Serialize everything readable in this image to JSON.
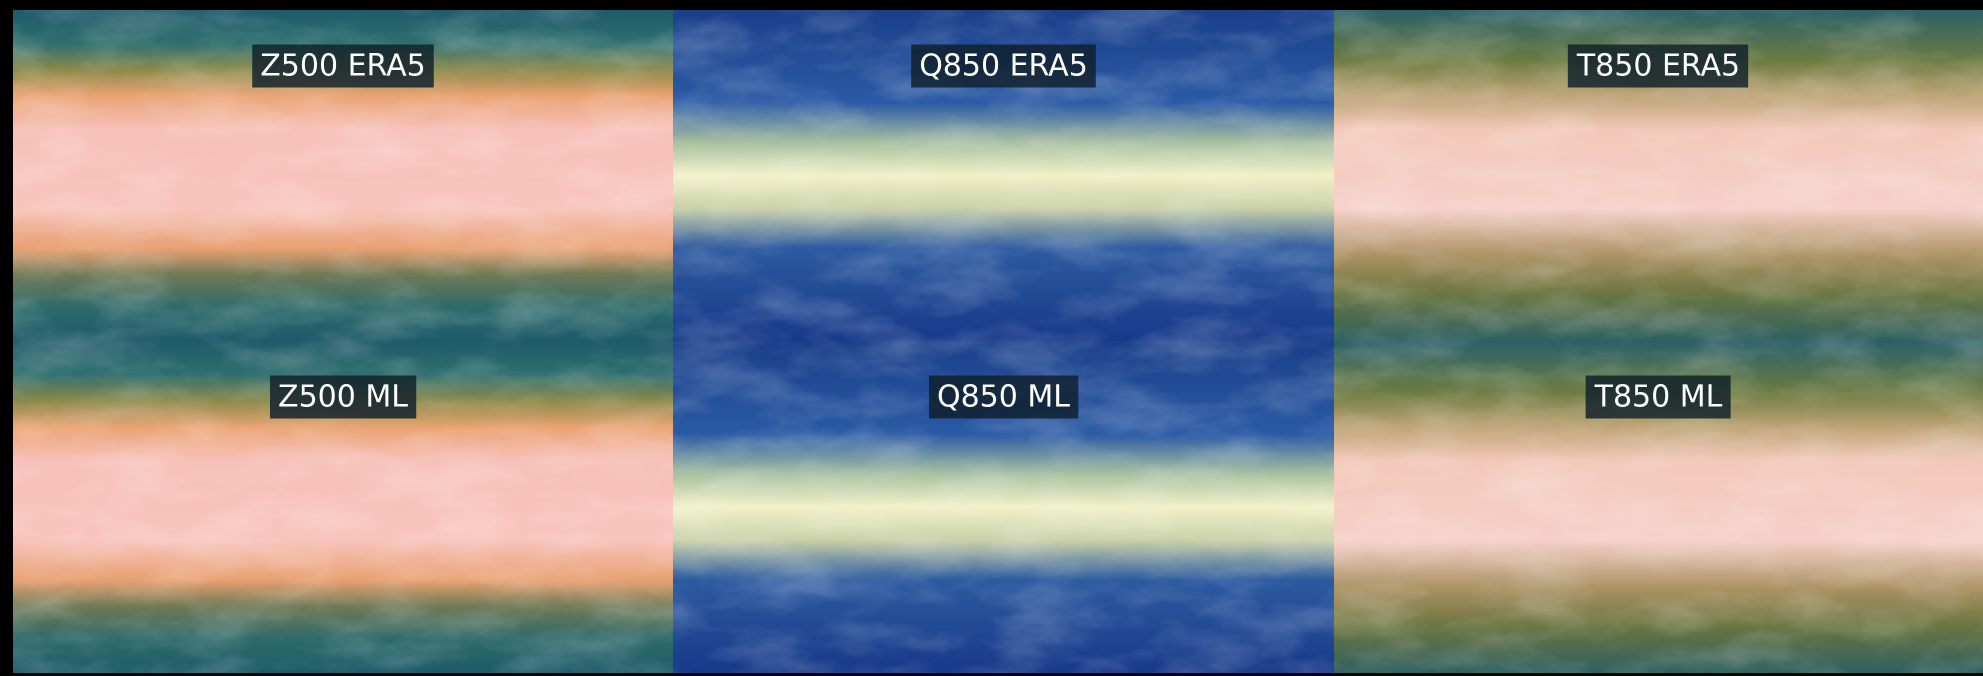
{
  "panels": [
    {
      "label": "Z500 ERA5"
    },
    {
      "label": "Q850 ERA5"
    },
    {
      "label": "T850 ERA5"
    },
    {
      "label": "Z500 ML"
    },
    {
      "label": "Q850 ML"
    },
    {
      "label": "T850 ML"
    }
  ]
}
